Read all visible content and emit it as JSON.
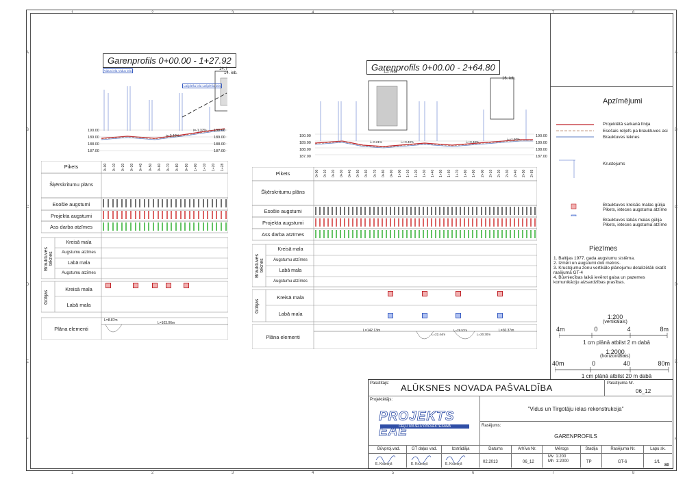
{
  "grid": {
    "cols": [
      "1",
      "2",
      "3",
      "4",
      "5",
      "6",
      "7",
      "8"
    ],
    "rows": [
      "A",
      "B",
      "C",
      "D",
      "E",
      "F"
    ]
  },
  "profile_left": {
    "title": "Garenprofils  0+00.00 - 1+27.92",
    "building": "14. ieb.",
    "elev_labels": [
      "190.00",
      "189.00",
      "188.00",
      "187.00"
    ],
    "slope_labels": [
      "i=-0.40%",
      "i=-1.37%"
    ],
    "street_tags": [
      "Vidus iela Vidus iela",
      "Lāčplēša iela Lāčplēša iela"
    ],
    "row_labels": {
      "piket": "Pikets",
      "sker": "Šķērskritumu plāns",
      "esosie": "Esošie augstumi",
      "projekta": "Projekta augstumi",
      "ass": "Ass darba atzīmes",
      "braukt": "Brauktuves teknes",
      "kreisa": "Kreisā mala",
      "augstumu": "Augstumu atzīmes",
      "laba": "Labā mala",
      "gulijas": "Gūlijas",
      "gkreisa": "Kreisā mala",
      "glaba": "Labā mala",
      "plana": "Plāna elementi"
    },
    "pikets": [
      "0+00",
      "0+10",
      "0+20",
      "0+30",
      "0+40",
      "0+50",
      "0+60",
      "0+70",
      "0+80",
      "0+90",
      "1+00",
      "1+10",
      "1+20",
      "1+28"
    ],
    "plan_labels": [
      "L=8.87m",
      "L=103.06m"
    ]
  },
  "profile_right": {
    "title": "Garenprofils  0+00.00 - 2+64.80",
    "buildings": [
      "15. ieb.",
      "16. ieb."
    ],
    "elev_labels": [
      "190.00",
      "189.00",
      "188.00",
      "187.00"
    ],
    "slope_labels": [
      "i=-0.21%",
      "i=+0.40%",
      "i=+0.40%",
      "i=+1.60%",
      "i=-0.40%"
    ],
    "row_labels": {
      "piket": "Pikets",
      "sker": "Šķērskritumu plāns",
      "esosie": "Esošie augstumi",
      "projekta": "Projekta augstumi",
      "ass": "Ass darba atzīmes",
      "braukt": "Brauktuves teknes",
      "kreisa": "Kreisā mala",
      "augstumu": "Augstumu atzīmes",
      "laba": "Labā mala",
      "gulijas": "Gūlijas",
      "gkreisa": "Kreisā mala",
      "glaba": "Labā mala",
      "plana": "Plāna elementi"
    },
    "pikets": [
      "0+00",
      "0+10",
      "0+20",
      "0+30",
      "0+40",
      "0+50",
      "0+60",
      "0+70",
      "0+80",
      "0+90",
      "1+00",
      "1+10",
      "1+20",
      "1+30",
      "1+40",
      "1+50",
      "1+60",
      "1+70",
      "1+80",
      "1+90",
      "2+00",
      "2+10",
      "2+20",
      "2+30",
      "2+40",
      "2+50",
      "2+65"
    ],
    "plan_labels": [
      "L=142.13m",
      "L=22.44m",
      "L=29.57m",
      "L=20.30m",
      "L=30.37m"
    ]
  },
  "legend": {
    "title": "Apzīmējumi",
    "items": [
      "Projektētā sarkanā līnija",
      "Esošais reljefs pa brauktuves asi",
      "Brauktuves teknes",
      "Krustojums",
      "Brauktuves kreisās malas gūlija Pikets, ieteces augstuma atzīme",
      "Brauktuves labās malas gūlija Pikets, ieteces augstuma atzīme"
    ],
    "colors": {
      "red": "#c0262c",
      "tan": "#b07a5a",
      "blue": "#5d7cc4"
    }
  },
  "notes": {
    "title": "Piezīmes",
    "items": [
      "1. Baltijas 1977. gada augstumu sistēma.",
      "2. Izmēri un augstumi doti metros.",
      "3. Krustojumu zonu vertikālo plānojumu detalizētāk skatīt rasējumā GT-4",
      "4. Būvniecības laikā ievērot gaisa un pazemes komunikāciju aizsardzības prasības."
    ]
  },
  "scales": {
    "vert": {
      "ratio": "1:200",
      "label": "(vertikālais)",
      "ticks": [
        "4m",
        "0",
        "4",
        "8m"
      ],
      "note": "1 cm plānā atbilst 2 m dabā"
    },
    "horiz": {
      "ratio": "1:2000",
      "label": "(horizontālais)",
      "ticks": [
        "40m",
        "0",
        "40",
        "80m"
      ],
      "note": "1 cm plānā atbilst 20 m dabā"
    }
  },
  "titleblock": {
    "pasutitajs_lbl": "Pasūtītājs:",
    "pasutitajs": "ALŪKSNES NOVADA PAŠVALDĪBA",
    "pas_nr_lbl": "Pasūtījuma Nr.",
    "pas_nr": "06_12",
    "projektetajs_lbl": "Projektētājs:",
    "project_name": "\"Vidus un Tirgotāju ielas rekonstrukcija\"",
    "logo_text": "PROJEKTS EAE",
    "logo_sub": "CEĻU UN IELU PROJEKTĒŠANA",
    "rasejums_lbl": "Rasējums:",
    "rasejums": "GARENPROFILS",
    "headers": [
      "Būvproj.vad.",
      "GT daļas vad.",
      "Izstrādāja",
      "Datums",
      "Arhīva Nr.",
      "Mērogs",
      "Stadija",
      "Rasējuma Nr.",
      "Lapu sk."
    ],
    "names": [
      "E. Krūmiņš",
      "E. Krūmiņš",
      "E. Krūmiņš"
    ],
    "datums": "02.2013",
    "arhiva": "06_12",
    "merogs": "Mv  1:200\nMh  1:2000",
    "stadija": "TP",
    "rasejuma_nr": "GT-6",
    "lapu": "1/1",
    "page": "80"
  }
}
